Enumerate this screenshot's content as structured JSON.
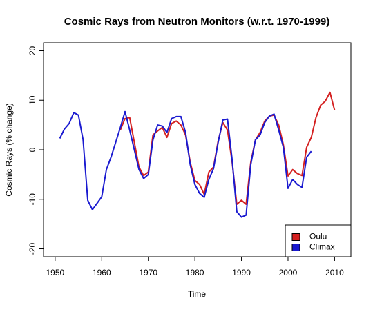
{
  "chart_data": {
    "type": "line",
    "title": "Cosmic Rays from Neutron Monitors (w.r.t. 1970-1999)",
    "x_label": "Time",
    "y_label": "Cosmic Rays (% change)",
    "x": [
      1951,
      1952,
      1953,
      1954,
      1955,
      1956,
      1957,
      1958,
      1959,
      1960,
      1961,
      1962,
      1963,
      1964,
      1965,
      1966,
      1967,
      1968,
      1969,
      1970,
      1971,
      1972,
      1973,
      1974,
      1975,
      1976,
      1977,
      1978,
      1979,
      1980,
      1981,
      1982,
      1983,
      1984,
      1985,
      1986,
      1987,
      1988,
      1989,
      1990,
      1991,
      1992,
      1993,
      1994,
      1995,
      1996,
      1997,
      1998,
      1999,
      2000,
      2001,
      2002,
      2003,
      2004,
      2005,
      2006,
      2007,
      2008,
      2009,
      2010
    ],
    "series": [
      {
        "name": "Oulu",
        "color": "#d42020",
        "values": [
          null,
          null,
          null,
          null,
          null,
          null,
          null,
          null,
          null,
          null,
          null,
          null,
          null,
          4.0,
          6.3,
          6.5,
          1.5,
          -3.5,
          -5.2,
          -4.5,
          3.0,
          3.8,
          4.5,
          2.5,
          5.3,
          5.8,
          5.0,
          3.0,
          -2.5,
          -6.2,
          -7.0,
          -9.0,
          -4.5,
          -3.5,
          1.8,
          5.5,
          4.0,
          -2.5,
          -11.0,
          -10.2,
          -11.0,
          -2.5,
          2.0,
          3.5,
          5.8,
          6.8,
          7.0,
          5.0,
          1.0,
          -5.3,
          -4.0,
          -4.8,
          -5.2,
          0.5,
          2.5,
          6.5,
          9.0,
          9.8,
          11.6,
          8.0
        ]
      },
      {
        "name": "Climax",
        "color": "#1a1ad0",
        "values": [
          2.3,
          4.2,
          5.3,
          7.5,
          7.0,
          2.0,
          -10.2,
          -12.1,
          -10.8,
          -9.5,
          -4.0,
          -1.5,
          1.5,
          4.5,
          7.7,
          4.0,
          0.0,
          -4.0,
          -5.8,
          -5.0,
          2.0,
          5.0,
          4.8,
          3.5,
          6.3,
          6.7,
          6.7,
          3.5,
          -3.0,
          -7.0,
          -8.8,
          -9.6,
          -6.0,
          -3.8,
          1.5,
          6.0,
          6.2,
          -2.0,
          -12.5,
          -13.6,
          -13.2,
          -3.0,
          2.0,
          3.0,
          5.5,
          6.8,
          7.2,
          4.0,
          0.5,
          -7.8,
          -6.0,
          -7.0,
          -7.6,
          -1.5,
          -0.3,
          null,
          null,
          null,
          null,
          null
        ]
      }
    ],
    "xlim": [
      1947.5,
      2013.5
    ],
    "xticks": [
      1950,
      1960,
      1970,
      1980,
      1990,
      2000,
      2010
    ],
    "ylim": [
      -21.6,
      21.6
    ],
    "yticks": [
      -20,
      -10,
      0,
      10,
      20
    ],
    "legend_position": "bottomright"
  }
}
